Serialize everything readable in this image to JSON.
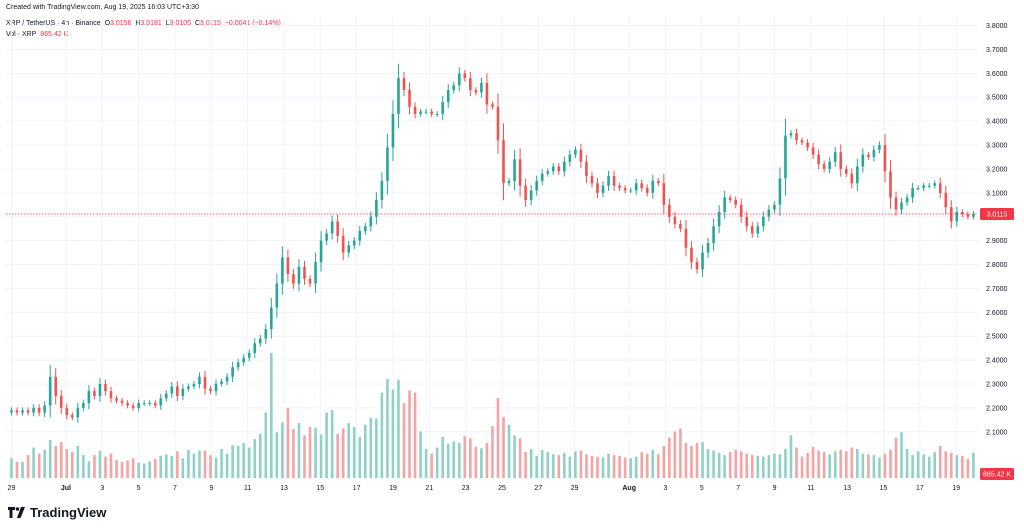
{
  "header": {
    "created": "Created with TradingView.com, Aug 19, 2025 16:03 UTC+3:30",
    "symbol": "XRP / TetherUS · 4h · Binance",
    "open_key": "O",
    "open": "3.0156",
    "high_key": "H",
    "high": "3.0181",
    "low_key": "L",
    "low": "3.0105",
    "close_key": "C",
    "close": "3.0115",
    "change": "−0.0041 (−0.14%)",
    "vol_label": "Vol · XRP",
    "vol_value": "865.42 K"
  },
  "colors": {
    "up": "#26a69a",
    "down": "#ef5350",
    "up_vol": "#8fd1c7",
    "down_vol": "#f5a3a3",
    "grid": "#f0f3fa",
    "price_line": "#f23645",
    "label_bg": "#f23645"
  },
  "brand": {
    "logo_text": "TradingView",
    "logo_icon": "tradingview-logo-icon"
  },
  "chart_data": {
    "type": "candlestick",
    "ylim": [
      1.94,
      3.84
    ],
    "yticks": [
      "3.8000",
      "3.7000",
      "3.6000",
      "3.5000",
      "3.4000",
      "3.3000",
      "3.2000",
      "3.1000",
      "3.0000",
      "2.9000",
      "2.8000",
      "2.7000",
      "2.6000",
      "2.5000",
      "2.4000",
      "2.3000",
      "2.2000",
      "2.1000"
    ],
    "last_price_label": "3.0115",
    "last_price": 3.0115,
    "volume_label": "865.42 K",
    "xticks": [
      {
        "label": "29",
        "day": -2
      },
      {
        "label": "Jul",
        "day": 1
      },
      {
        "label": "3",
        "day": 3
      },
      {
        "label": "5",
        "day": 5
      },
      {
        "label": "7",
        "day": 7
      },
      {
        "label": "9",
        "day": 9
      },
      {
        "label": "11",
        "day": 11
      },
      {
        "label": "13",
        "day": 13
      },
      {
        "label": "15",
        "day": 15
      },
      {
        "label": "17",
        "day": 17
      },
      {
        "label": "19",
        "day": 19
      },
      {
        "label": "21",
        "day": 21
      },
      {
        "label": "23",
        "day": 23
      },
      {
        "label": "25",
        "day": 25
      },
      {
        "label": "27",
        "day": 27
      },
      {
        "label": "29",
        "day": 29
      },
      {
        "label": "Aug",
        "day": 32
      },
      {
        "label": "3",
        "day": 34
      },
      {
        "label": "5",
        "day": 36
      },
      {
        "label": "7",
        "day": 38
      },
      {
        "label": "9",
        "day": 40
      },
      {
        "label": "11",
        "day": 42
      },
      {
        "label": "13",
        "day": 44
      },
      {
        "label": "15",
        "day": 46
      },
      {
        "label": "17",
        "day": 48
      },
      {
        "label": "19",
        "day": 50
      }
    ],
    "x_day_range": [
      -2.3,
      51.2
    ],
    "closes": [
      2.19,
      2.18,
      2.19,
      2.18,
      2.2,
      2.18,
      2.21,
      2.33,
      2.25,
      2.2,
      2.17,
      2.16,
      2.2,
      2.22,
      2.27,
      2.25,
      2.3,
      2.27,
      2.24,
      2.23,
      2.22,
      2.21,
      2.2,
      2.22,
      2.22,
      2.22,
      2.21,
      2.24,
      2.26,
      2.29,
      2.25,
      2.28,
      2.29,
      2.3,
      2.33,
      2.28,
      2.27,
      2.3,
      2.31,
      2.33,
      2.37,
      2.39,
      2.41,
      2.43,
      2.47,
      2.49,
      2.53,
      2.62,
      2.72,
      2.83,
      2.76,
      2.72,
      2.79,
      2.74,
      2.72,
      2.81,
      2.9,
      2.93,
      2.98,
      2.92,
      2.85,
      2.88,
      2.9,
      2.94,
      2.96,
      3.0,
      3.07,
      3.15,
      3.29,
      3.43,
      3.58,
      3.53,
      3.46,
      3.43,
      3.44,
      3.44,
      3.43,
      3.43,
      3.48,
      3.53,
      3.55,
      3.6,
      3.58,
      3.53,
      3.52,
      3.56,
      3.47,
      3.46,
      3.32,
      3.14,
      3.15,
      3.24,
      3.13,
      3.07,
      3.11,
      3.15,
      3.18,
      3.19,
      3.21,
      3.19,
      3.23,
      3.26,
      3.28,
      3.23,
      3.17,
      3.14,
      3.1,
      3.13,
      3.17,
      3.13,
      3.12,
      3.11,
      3.11,
      3.14,
      3.12,
      3.1,
      3.15,
      3.14,
      3.05,
      3.0,
      2.97,
      2.95,
      2.87,
      2.81,
      2.78,
      2.85,
      2.89,
      2.96,
      3.02,
      3.08,
      3.07,
      3.05,
      3.0,
      2.96,
      2.93,
      2.96,
      3.0,
      3.03,
      3.05,
      3.16,
      3.34,
      3.35,
      3.32,
      3.31,
      3.29,
      3.26,
      3.22,
      3.2,
      3.23,
      3.27,
      3.2,
      3.18,
      3.14,
      3.21,
      3.26,
      3.25,
      3.28,
      3.3,
      3.19,
      3.08,
      3.03,
      3.06,
      3.08,
      3.12,
      3.12,
      3.13,
      3.13,
      3.14,
      3.1,
      3.04,
      2.98,
      3.02,
      3.01,
      3.0,
      3.0115
    ],
    "volumes": [
      26,
      21,
      21,
      30,
      40,
      32,
      37,
      50,
      42,
      47,
      38,
      34,
      42,
      30,
      22,
      30,
      36,
      28,
      32,
      24,
      21,
      23,
      26,
      20,
      19,
      22,
      25,
      29,
      31,
      29,
      35,
      26,
      37,
      32,
      36,
      36,
      30,
      27,
      38,
      32,
      43,
      42,
      46,
      40,
      51,
      58,
      86,
      164,
      60,
      73,
      92,
      64,
      72,
      56,
      67,
      66,
      57,
      86,
      89,
      58,
      65,
      72,
      67,
      54,
      70,
      79,
      78,
      112,
      130,
      116,
      129,
      98,
      115,
      112,
      61,
      38,
      32,
      40,
      54,
      45,
      48,
      46,
      55,
      52,
      41,
      39,
      46,
      68,
      105,
      80,
      70,
      56,
      52,
      34,
      38,
      29,
      37,
      34,
      31,
      30,
      33,
      28,
      35,
      36,
      31,
      29,
      28,
      27,
      32,
      30,
      29,
      27,
      26,
      28,
      34,
      32,
      37,
      31,
      42,
      53,
      61,
      65,
      46,
      42,
      46,
      47,
      38,
      36,
      33,
      30,
      34,
      37,
      35,
      32,
      30,
      29,
      28,
      30,
      32,
      31,
      38,
      56,
      40,
      28,
      33,
      41,
      36,
      34,
      31,
      35,
      37,
      35,
      40,
      38,
      32,
      31,
      30,
      27,
      32,
      37,
      53,
      60,
      38,
      30,
      35,
      31,
      28,
      34,
      42,
      35,
      33,
      30,
      29,
      25,
      33
    ],
    "volume_max": 620000,
    "last_volume": 865420
  }
}
